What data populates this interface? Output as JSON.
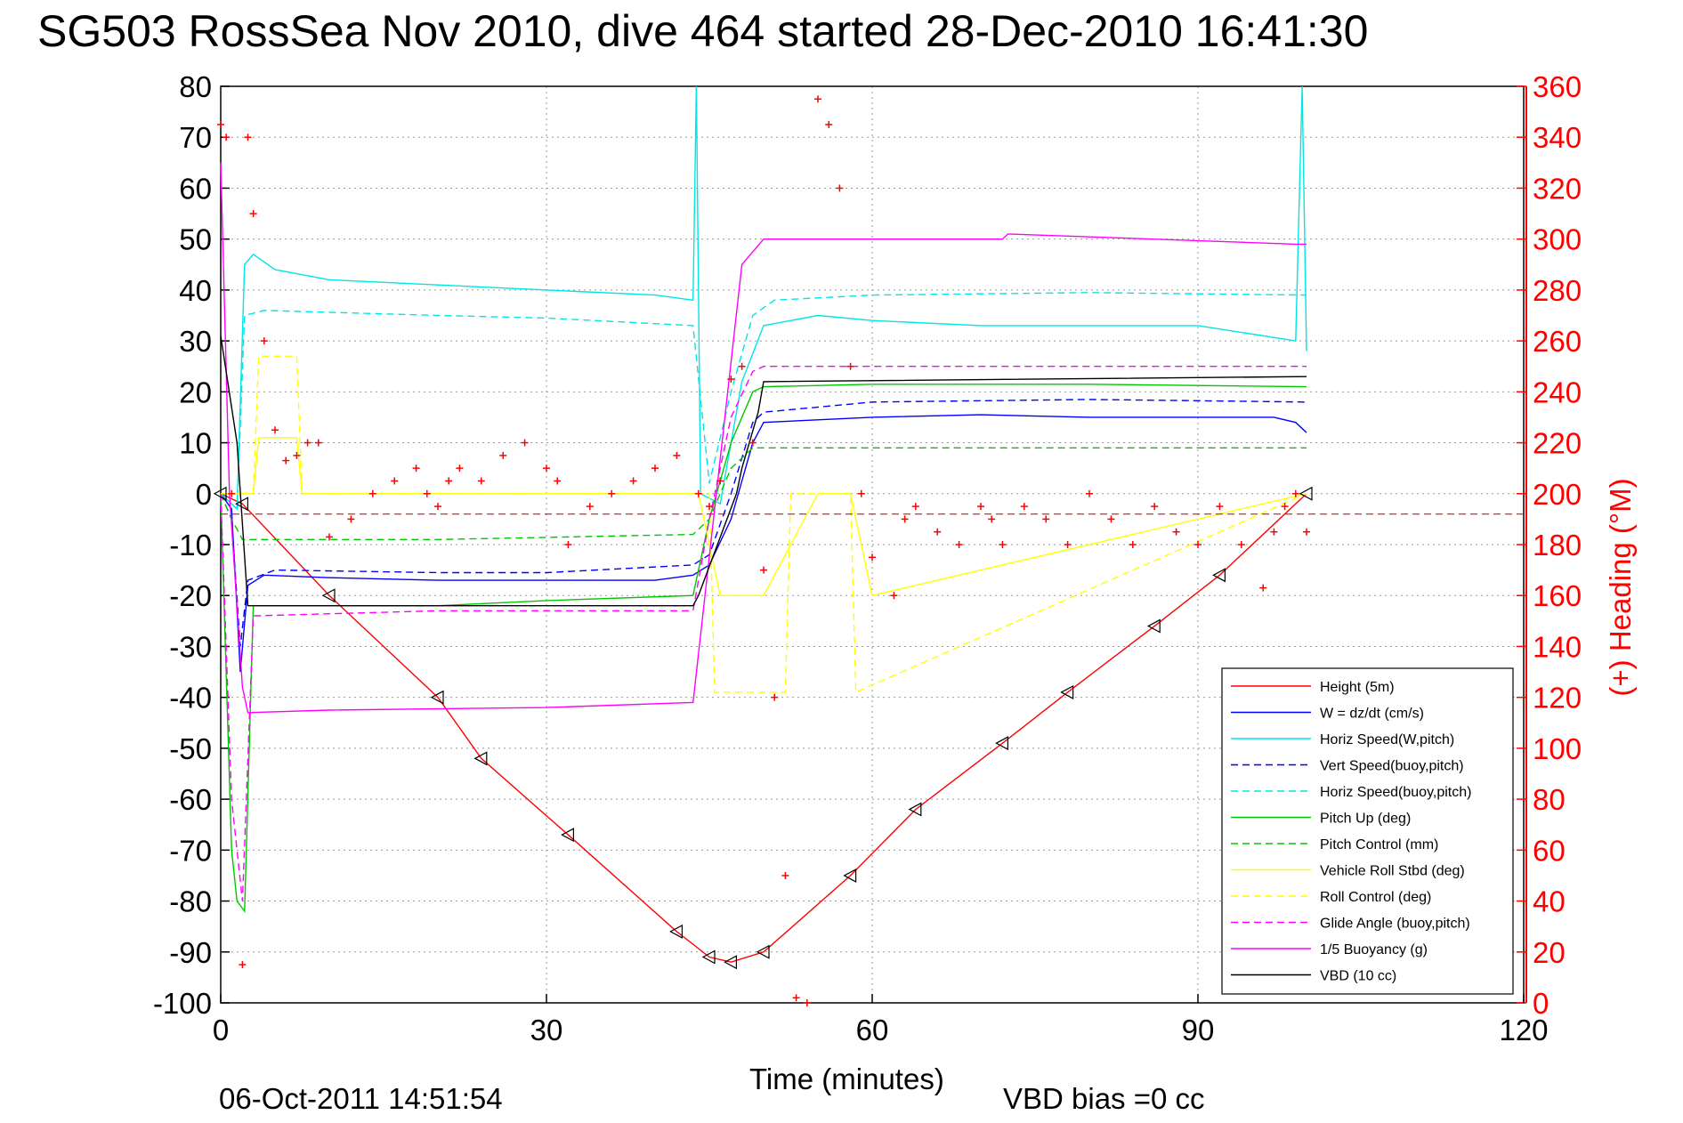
{
  "chart_data": {
    "type": "line",
    "title": "SG503 RossSea Nov 2010, dive 464 started 28-Dec-2010 16:41:30",
    "xlabel": "Time (minutes)",
    "ylabel_right": "(+) Heading (°M)",
    "xlim": [
      0,
      120
    ],
    "ylim": [
      -100,
      80
    ],
    "ylim_right": [
      0,
      360
    ],
    "x_ticks": [
      "0",
      "30",
      "60",
      "90",
      "120"
    ],
    "y_ticks": [
      "80",
      "70",
      "60",
      "50",
      "40",
      "30",
      "20",
      "10",
      "0",
      "-10",
      "-20",
      "-30",
      "-40",
      "-50",
      "-60",
      "-70",
      "-80",
      "-90",
      "-100"
    ],
    "y_right_ticks": [
      "360",
      "340",
      "320",
      "300",
      "280",
      "260",
      "240",
      "220",
      "200",
      "180",
      "160",
      "140",
      "120",
      "100",
      "80",
      "60",
      "40",
      "20",
      "0"
    ],
    "grid": true,
    "legend_position": "bottom-right",
    "footer_left": "06-Oct-2011 14:51:54",
    "footer_right": "VBD bias =0 cc",
    "series": [
      {
        "name": "Height (5m)",
        "color": "#ff0000",
        "style": "solid",
        "x": [
          0,
          2,
          10,
          20,
          24,
          32,
          42,
          45,
          47,
          50,
          58,
          64,
          72,
          78,
          86,
          92,
          100
        ],
        "y": [
          0,
          -2,
          -20,
          -40,
          -52,
          -67,
          -86,
          -91,
          -92,
          -90,
          -75,
          -62,
          -49,
          -39,
          -26,
          -16,
          0
        ]
      },
      {
        "name": "W = dz/dt (cm/s)",
        "color": "#0000ff",
        "style": "solid",
        "x": [
          0,
          1,
          1.8,
          2.5,
          4,
          10,
          20,
          30,
          40,
          43.5,
          45,
          47,
          49,
          50,
          60,
          70,
          80,
          90,
          97,
          99,
          100
        ],
        "y": [
          0,
          -3,
          -35,
          -18,
          -16,
          -16.5,
          -17,
          -17,
          -17,
          -16,
          -14,
          -5,
          10,
          14,
          15,
          15.5,
          15,
          15,
          15,
          14,
          12
        ]
      },
      {
        "name": "Horiz Speed(W,pitch)",
        "color": "#00e5e5",
        "style": "solid",
        "x": [
          0,
          1.5,
          2.2,
          3,
          5,
          10,
          20,
          30,
          40,
          43.5,
          43.8,
          44.2,
          46,
          48,
          50,
          55,
          60,
          70,
          80,
          90,
          99,
          99.6,
          100
        ],
        "y": [
          0,
          -3,
          45,
          47,
          44,
          42,
          41,
          40,
          39,
          38,
          80,
          0,
          -2,
          22,
          33,
          35,
          34,
          33,
          33,
          33,
          30,
          80,
          28
        ]
      },
      {
        "name": "Vert Speed(buoy,pitch)",
        "color": "#0000ff",
        "style": "dashed",
        "x": [
          0,
          1,
          1.8,
          2.5,
          5,
          20,
          30,
          43.5,
          45,
          47,
          49,
          50,
          60,
          80,
          100
        ],
        "y": [
          0,
          -5,
          -30,
          -17,
          -15,
          -15.5,
          -15.5,
          -14,
          -12,
          0,
          14,
          16,
          18,
          18.5,
          18
        ]
      },
      {
        "name": "Horiz Speed(buoy,pitch)",
        "color": "#00e5e5",
        "style": "dashed",
        "x": [
          0,
          1.5,
          2.2,
          4,
          20,
          30,
          43.5,
          45,
          47,
          49,
          51,
          60,
          80,
          100
        ],
        "y": [
          0,
          -3,
          35,
          36,
          35,
          34.5,
          33,
          2,
          20,
          35,
          38,
          39,
          39.5,
          39
        ]
      },
      {
        "name": "Pitch Up (deg)",
        "color": "#00c800",
        "style": "solid",
        "x": [
          0,
          1,
          1.5,
          2.2,
          3,
          20,
          30,
          43.5,
          45,
          47,
          49,
          50,
          60,
          80,
          100
        ],
        "y": [
          0,
          -70,
          -80,
          -82,
          -22,
          -22,
          -21,
          -20,
          -5,
          10,
          20,
          21,
          21.5,
          21.5,
          21
        ]
      },
      {
        "name": "Pitch Control (mm)",
        "color": "#00c800",
        "style": "dashed",
        "x": [
          0,
          1,
          2,
          3,
          20,
          43.5,
          45,
          47,
          49,
          50,
          100
        ],
        "y": [
          0,
          -5,
          -9,
          -9,
          -9,
          -8,
          -5,
          5,
          9,
          9,
          9
        ]
      },
      {
        "name": "Vehicle Roll Stbd (deg)",
        "color": "#ffff00",
        "style": "solid",
        "x": [
          0,
          3,
          3.5,
          7,
          7.5,
          10,
          42,
          44,
          46,
          50,
          55,
          58,
          60,
          100
        ],
        "y": [
          0,
          0,
          11,
          11,
          0,
          0,
          0,
          0,
          -20,
          -20,
          0,
          0,
          -20,
          0
        ]
      },
      {
        "name": "Roll Control (deg)",
        "color": "#ffff00",
        "style": "dashed",
        "x": [
          0,
          3,
          3.5,
          7,
          7.5,
          10,
          45,
          45.5,
          52,
          52.5,
          58,
          58.5,
          100
        ],
        "y": [
          0,
          0,
          27,
          27,
          0,
          0,
          0,
          -39,
          -39,
          0,
          0,
          -39,
          0
        ]
      },
      {
        "name": "Glide Angle (buoy,pitch)",
        "color": "#ff00ff",
        "style": "dashed",
        "x": [
          0,
          1,
          2,
          3,
          20,
          43.5,
          45,
          47,
          49,
          50,
          100
        ],
        "y": [
          0,
          -60,
          -80,
          -24,
          -23,
          -23,
          -5,
          15,
          24,
          25,
          25
        ]
      },
      {
        "name": "1/5 Buoyancy (g)",
        "color": "#ff00ff",
        "style": "solid",
        "x": [
          0,
          0.8,
          2,
          2.5,
          10,
          30,
          43.5,
          48,
          50,
          60,
          72,
          72.5,
          99,
          100
        ],
        "y": [
          65,
          0,
          -38,
          -43,
          -42.5,
          -42,
          -41,
          45,
          50,
          50,
          50,
          51,
          49,
          49
        ]
      },
      {
        "name": "VBD (10 cc)",
        "color": "#000000",
        "style": "solid",
        "x": [
          0,
          1.5,
          2.5,
          3,
          43.5,
          44,
          47.5,
          48,
          49.5,
          50,
          100
        ],
        "y": [
          31,
          10,
          -22,
          -22,
          -22,
          -20,
          0,
          5,
          16,
          22,
          23
        ]
      }
    ],
    "heading_series": {
      "name": "Heading (+)",
      "axis": "right",
      "color": "#ff0000",
      "x": [
        0,
        0.5,
        1,
        2,
        2.5,
        3,
        4,
        5,
        6,
        7,
        8,
        9,
        10,
        12,
        14,
        16,
        18,
        19,
        20,
        21,
        22,
        24,
        26,
        28,
        30,
        31,
        32,
        34,
        36,
        38,
        40,
        42,
        44,
        45,
        46,
        47,
        48,
        49,
        50,
        51,
        52,
        53,
        54,
        55,
        56,
        57,
        58,
        59,
        60,
        62,
        63,
        64,
        66,
        68,
        70,
        71,
        72,
        74,
        76,
        78,
        80,
        82,
        84,
        86,
        88,
        90,
        92,
        94,
        96,
        97,
        98,
        99,
        100
      ],
      "y": [
        345,
        340,
        200,
        15,
        340,
        310,
        260,
        225,
        213,
        215,
        220,
        220,
        183,
        190,
        200,
        205,
        210,
        200,
        195,
        205,
        210,
        205,
        215,
        220,
        210,
        205,
        180,
        195,
        200,
        205,
        210,
        215,
        200,
        195,
        205,
        245,
        250,
        220,
        170,
        120,
        50,
        2,
        0,
        355,
        345,
        320,
        250,
        200,
        175,
        160,
        190,
        195,
        185,
        180,
        195,
        190,
        180,
        195,
        190,
        180,
        200,
        190,
        180,
        195,
        185,
        180,
        195,
        180,
        163,
        185,
        195,
        200,
        185
      ]
    }
  }
}
